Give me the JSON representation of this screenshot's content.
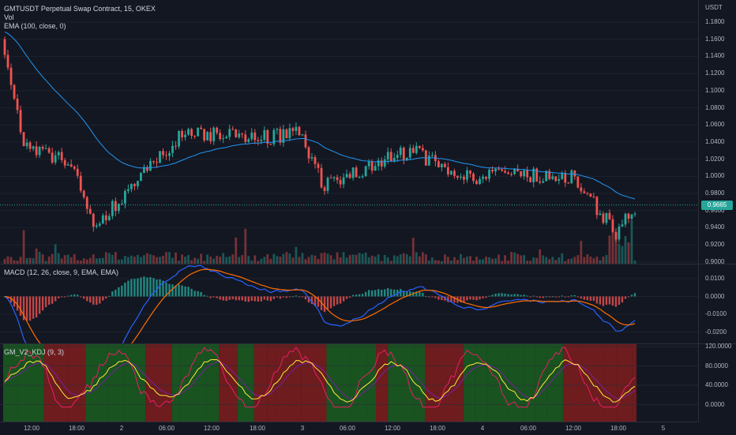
{
  "header": {
    "title": "GMTUSDT Perpetual Swap Contract, 15, OKEX",
    "vol_label": "Vol",
    "ema_label": "EMA (100, close, 0)",
    "currency": "USDT"
  },
  "price_axis": {
    "labels": [
      "1.1800",
      "1.1600",
      "1.1400",
      "1.1200",
      "1.1000",
      "1.0800",
      "1.0600",
      "1.0400",
      "1.0200",
      "1.0000",
      "0.9800",
      "0.9600",
      "0.9400",
      "0.9200",
      "0.9000"
    ],
    "last_price": "0.9665"
  },
  "macd": {
    "label": "MACD (12, 26, close, 9, EMA, EMA)",
    "axis_labels": [
      "0.0100",
      "0.0000",
      "-0.0100",
      "-0.0200"
    ]
  },
  "kdj": {
    "label": "GM_V2_KDJ (9, 3)",
    "axis_labels": [
      "120.0000",
      "80.0000",
      "40.0000",
      "0.0000"
    ]
  },
  "time_axis": {
    "labels": [
      "12:00",
      "18:00",
      "2",
      "06:00",
      "12:00",
      "18:00",
      "3",
      "06:00",
      "12:00",
      "18:00",
      "4",
      "06:00",
      "12:00",
      "18:00",
      "5"
    ]
  },
  "colors": {
    "up": "#26a69a",
    "down": "#ef5350",
    "ema": "#2196f3",
    "macd_line": "#2962ff",
    "signal_line": "#ff6d00",
    "k_line": "#ffeb3b",
    "d_line": "#7b1fa2",
    "j_line": "#e91e63"
  },
  "chart_data": {
    "type": "candlestick",
    "symbol": "GMTUSDT Perpetual Swap Contract",
    "interval": "15",
    "exchange": "OKEX",
    "last_price": 0.9665,
    "ylim": [
      0.9,
      1.19
    ],
    "keypoints": [
      {
        "t": "day1 09:00",
        "price": 1.16
      },
      {
        "t": "day1 13:00",
        "price": 1.04
      },
      {
        "t": "day1 18:00",
        "price": 1.01
      },
      {
        "t": "day1 23:00",
        "price": 0.94
      },
      {
        "t": "day2 05:00",
        "price": 1.05
      },
      {
        "t": "day2 12:00",
        "price": 1.045
      },
      {
        "t": "day2 18:00",
        "price": 1.05
      },
      {
        "t": "day3 03:00",
        "price": 0.99
      },
      {
        "t": "day3 12:00",
        "price": 1.03
      },
      {
        "t": "day3 18:00",
        "price": 1.0
      },
      {
        "t": "day4 12:00",
        "price": 1.0
      },
      {
        "t": "day4 18:00",
        "price": 0.935
      },
      {
        "t": "day4 20:00",
        "price": 0.9665
      }
    ]
  }
}
